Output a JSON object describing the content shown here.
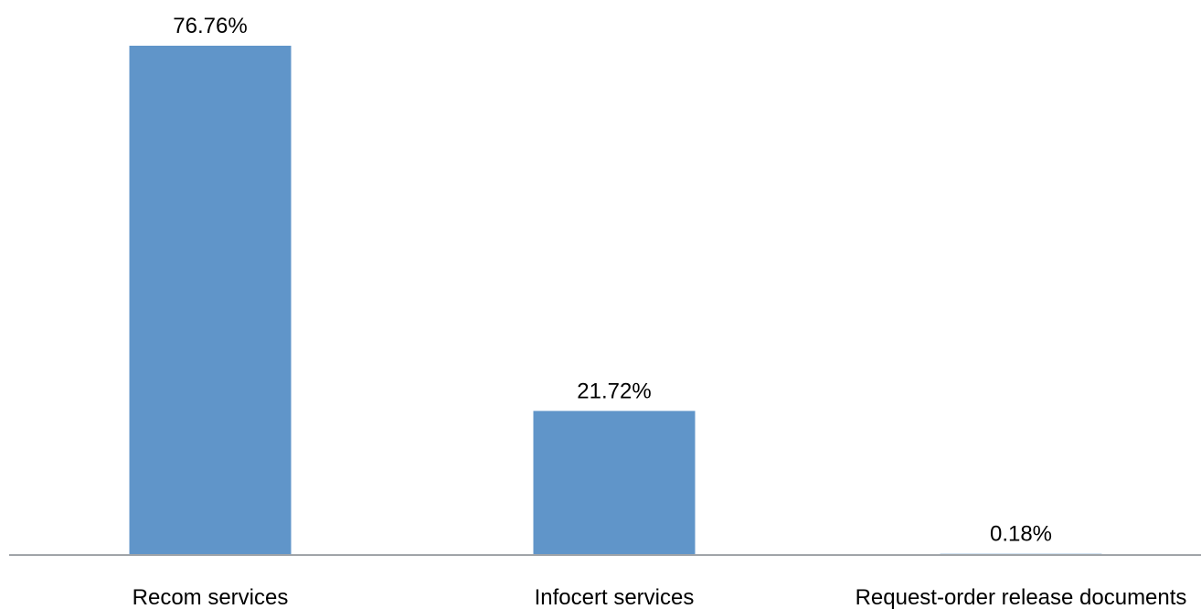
{
  "chart_data": {
    "type": "bar",
    "categories": [
      "Recom services",
      "Infocert services",
      "Request-order release documents"
    ],
    "values": [
      76.76,
      21.72,
      0.18
    ],
    "data_labels": [
      "76.76%",
      "21.72%",
      "0.18%"
    ],
    "title": "",
    "xlabel": "",
    "ylabel": "",
    "ylim": [
      0,
      80
    ],
    "grid": false,
    "legend": "none",
    "colors": {
      "bar": "#6095c9",
      "axis": "#a0a4a8",
      "text": "#000000"
    }
  }
}
